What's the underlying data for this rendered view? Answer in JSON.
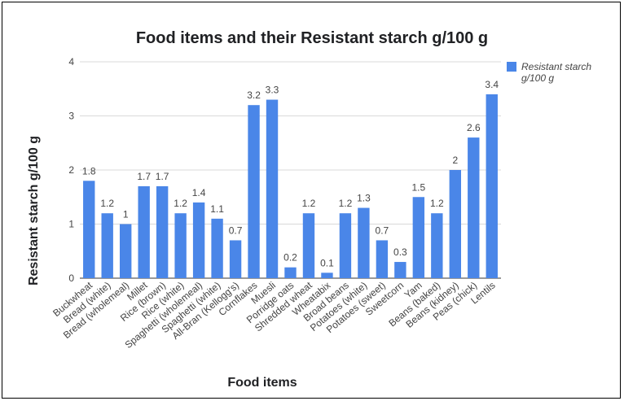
{
  "chart_data": {
    "type": "bar",
    "title": "Food items and their Resistant starch g/100 g",
    "xlabel": "Food items",
    "ylabel": "Resistant starch g/100 g",
    "ylim": [
      0,
      4
    ],
    "yticks": [
      "0",
      "1",
      "2",
      "3",
      "4"
    ],
    "grid": true,
    "legend_position": "top-right",
    "series": [
      {
        "name": "Resistant starch g/100 g",
        "color": "#4a86e8",
        "values": [
          1.8,
          1.2,
          1,
          1.7,
          1.7,
          1.2,
          1.4,
          1.1,
          0.7,
          3.2,
          3.3,
          0.2,
          1.2,
          0.1,
          1.2,
          1.3,
          0.7,
          0.3,
          1.5,
          1.2,
          2,
          2.6,
          3.4
        ],
        "labels": [
          "1.8",
          "1.2",
          "1",
          "1.7",
          "1.7",
          "1.2",
          "1.4",
          "1.1",
          "0.7",
          "3.2",
          "3.3",
          "0.2",
          "1.2",
          "0.1",
          "1.2",
          "1.3",
          "0.7",
          "0.3",
          "1.5",
          "1.2",
          "2",
          "2.6",
          "3.4"
        ]
      }
    ],
    "categories": [
      "Buckwheat",
      "Bread (white)",
      "Bread (wholemeal)",
      "Millet",
      "Rice (brown)",
      "Rice (white)",
      "Spaghetti (wholemeal)",
      "Spaghetti (white)",
      "All-Bran (Kellogg's)",
      "Cornflakes",
      "Muesli",
      "Porridge oats",
      "Shredded wheat",
      "Wheatabix",
      "Broad beans",
      "Potatoes (white)",
      "Potatoes (sweet)",
      "Sweetcorn",
      "Yam",
      "Beans (baked)",
      "Beans (kidney)",
      "Peas (chick)",
      "Lentils"
    ],
    "legend": {
      "line1": "Resistant starch",
      "line2": "g/100 g"
    }
  }
}
